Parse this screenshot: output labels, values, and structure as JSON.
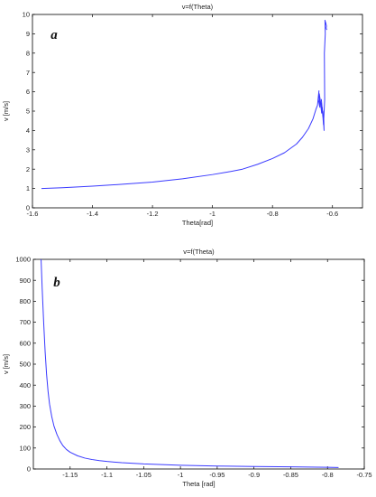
{
  "chart_data": [
    {
      "type": "line",
      "panel_label": "a",
      "title": "v=f(Theta)",
      "xlabel": "Theta[rad]",
      "ylabel": "v [m/s]",
      "xlim": [
        -1.6,
        -0.5
      ],
      "ylim": [
        0,
        10
      ],
      "xticks": [
        -1.6,
        -1.4,
        -1.2,
        -1,
        -0.8,
        -0.6
      ],
      "xtick_labels": [
        "-1.6",
        "-1.4",
        "-1.2",
        "-1",
        "-0.8",
        "-0.6"
      ],
      "yticks": [
        0,
        1,
        2,
        3,
        4,
        5,
        6,
        7,
        8,
        9,
        10
      ],
      "ytick_labels": [
        "0",
        "1",
        "2",
        "3",
        "4",
        "5",
        "6",
        "7",
        "8",
        "9",
        "10"
      ],
      "grid": false,
      "line_color": "#3a3aff",
      "series": [
        {
          "x": [
            -1.57,
            -1.5,
            -1.4,
            -1.3,
            -1.2,
            -1.1,
            -1.0,
            -0.95,
            -0.9,
            -0.85,
            -0.8,
            -0.76,
            -0.72,
            -0.7,
            -0.68,
            -0.665,
            -0.655,
            -0.65,
            -0.645,
            -0.647,
            -0.642,
            -0.644,
            -0.638,
            -0.642,
            -0.636,
            -0.639,
            -0.634,
            -0.637,
            -0.632,
            -0.634,
            -0.63,
            -0.632,
            -0.628,
            -0.629,
            -0.626,
            -0.627,
            -0.624,
            -0.625,
            -0.622,
            -0.623,
            -0.62,
            -0.621,
            -0.619
          ],
          "y": [
            1.0,
            1.04,
            1.12,
            1.22,
            1.33,
            1.5,
            1.72,
            1.85,
            2.0,
            2.25,
            2.55,
            2.85,
            3.3,
            3.65,
            4.1,
            4.6,
            5.1,
            5.3,
            6.05,
            5.6,
            5.2,
            5.9,
            5.3,
            5.7,
            4.9,
            5.4,
            5.0,
            5.6,
            4.7,
            5.2,
            4.3,
            5.0,
            4.0,
            4.6,
            5.6,
            8.0,
            9.0,
            9.7,
            9.5,
            9.6,
            9.4,
            9.3,
            9.2
          ]
        }
      ]
    },
    {
      "type": "line",
      "panel_label": "b",
      "title": "v=f(Theta)",
      "xlabel": "Theta [rad]",
      "ylabel": "v [m/s]",
      "xlim": [
        -1.2,
        -0.75
      ],
      "ylim": [
        0,
        1000
      ],
      "xticks": [
        -1.15,
        -1.1,
        -1.05,
        -1,
        -0.95,
        -0.9,
        -0.85,
        -0.8,
        -0.75
      ],
      "xtick_labels": [
        "-1.15",
        "-1.1",
        "-1.05",
        "-1",
        "-0.95",
        "-0.9",
        "-0.85",
        "-0.8",
        "-0.75"
      ],
      "yticks": [
        0,
        100,
        200,
        300,
        400,
        500,
        600,
        700,
        800,
        900,
        1000
      ],
      "ytick_labels": [
        "0",
        "100",
        "200",
        "300",
        "400",
        "500",
        "600",
        "700",
        "800",
        "900",
        "1000"
      ],
      "grid": false,
      "line_color": "#3a3aff",
      "series": [
        {
          "x": [
            -1.1895,
            -1.188,
            -1.186,
            -1.184,
            -1.182,
            -1.18,
            -1.178,
            -1.175,
            -1.172,
            -1.168,
            -1.164,
            -1.16,
            -1.155,
            -1.15,
            -1.14,
            -1.13,
            -1.12,
            -1.11,
            -1.1,
            -1.08,
            -1.05,
            -1.0,
            -0.95,
            -0.9,
            -0.85,
            -0.8,
            -0.785
          ],
          "y": [
            1000,
            860,
            700,
            560,
            450,
            370,
            310,
            250,
            205,
            165,
            135,
            112,
            93,
            80,
            63,
            52,
            45,
            40,
            36,
            30,
            24,
            18,
            14,
            12,
            10,
            8,
            7
          ]
        }
      ]
    }
  ]
}
